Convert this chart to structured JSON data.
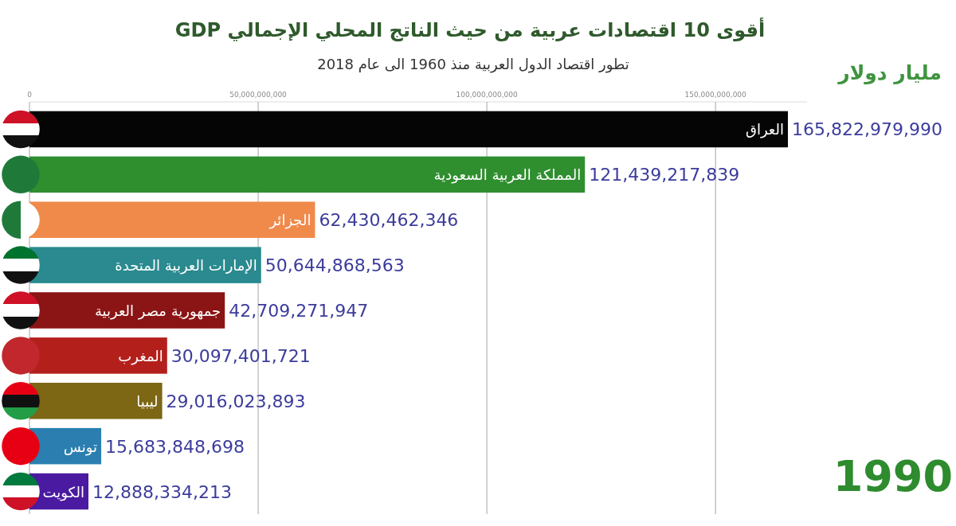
{
  "chart_data": {
    "type": "bar",
    "orientation": "horizontal",
    "title": "أقوى 10 اقتصادات عربية من حيث الناتج المحلي الإجمالي GDP",
    "subtitle": "تطور اقتصاد الدول العربية منذ 1960 الى عام 2018",
    "annotations": [
      "مليار دولار",
      "1990"
    ],
    "categories": [
      "العراق",
      "المملكة العربية السعودية",
      "الجزائر",
      "الإمارات العربية المتحدة",
      "جمهورية مصر العربية",
      "المغرب",
      "ليبيا",
      "تونس",
      "الكويت"
    ],
    "values": [
      165822979990,
      121439217839,
      62430462346,
      50644868563,
      42709271947,
      30097401721,
      29016023893,
      15683848698,
      12888334213
    ],
    "value_labels": [
      "165,822,979,990",
      "121,439,217,839",
      "62,430,462,346",
      "50,644,868,563",
      "42,709,271,947",
      "30,097,401,721",
      "29,016,023,893",
      "15,683,848,698",
      "12,888,334,213"
    ],
    "colors": [
      "#050505",
      "#2f8f2f",
      "#f08a4b",
      "#2a8a8f",
      "#8b1414",
      "#b3201c",
      "#7d6614",
      "#2b7fb0",
      "#4a1aa0"
    ],
    "xlim": [
      0,
      170000000000
    ],
    "xticks": [
      0,
      {
        "value": 50000000000,
        "label": "50,000,000,000"
      },
      {
        "value": 100000000000,
        "label": "100,000,000,000"
      },
      {
        "value": 150000000000,
        "label": "150,000,000,000"
      }
    ],
    "grid": "x"
  }
}
